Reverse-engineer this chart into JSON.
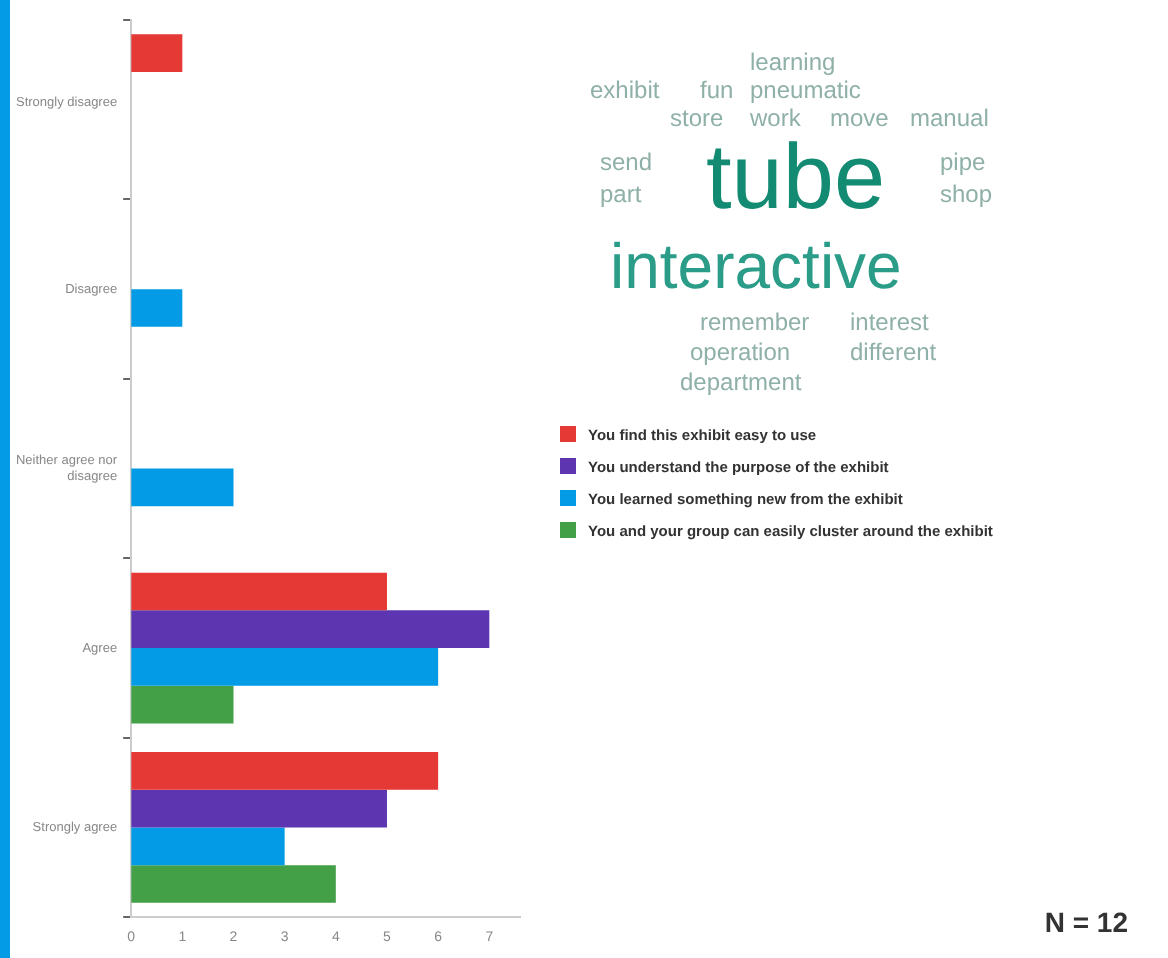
{
  "chart_data": {
    "type": "bar",
    "orientation": "horizontal",
    "categories": [
      "Strongly disagree",
      "Disagree",
      "Neither agree nor disagree",
      "Agree",
      "Strongly agree"
    ],
    "series": [
      {
        "name": "You find this exhibit easy to use",
        "color": "#e53935",
        "values": [
          1,
          0,
          0,
          5,
          6
        ]
      },
      {
        "name": "You understand the purpose of the exhibit",
        "color": "#5e35b1",
        "values": [
          0,
          0,
          0,
          7,
          5
        ]
      },
      {
        "name": "You learned something new from the exhibit",
        "color": "#039be5",
        "values": [
          0,
          1,
          2,
          6,
          3
        ]
      },
      {
        "name": "You and your group can easily cluster around the exhibit",
        "color": "#43a047",
        "values": [
          0,
          0,
          0,
          2,
          4
        ]
      }
    ],
    "xlim": [
      0,
      7.6
    ],
    "xticks": [
      0,
      1,
      2,
      3,
      4,
      5,
      6,
      7
    ],
    "grid": false,
    "legend": "right",
    "annotations": [
      "tube",
      "interactive",
      "learning",
      "exhibit",
      "fun",
      "pneumatic",
      "store",
      "work",
      "move",
      "manual",
      "send",
      "pipe",
      "part",
      "shop",
      "remember",
      "interest",
      "operation",
      "different",
      "department",
      "N = 12"
    ]
  }
}
